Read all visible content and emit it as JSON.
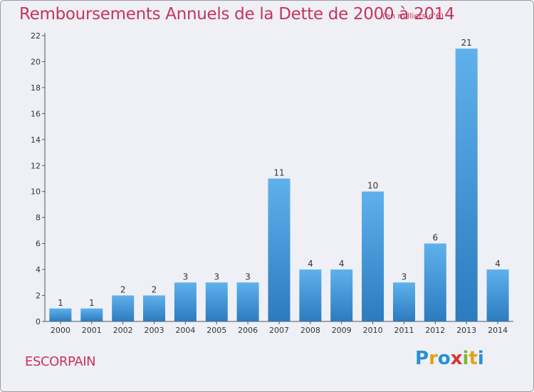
{
  "header": {
    "title": "Remboursements Annuels de la Dette de 2000 à 2014",
    "subtitle": "(en milliers d'€)"
  },
  "footer": {
    "commune": "ESCORPAIN",
    "logo_text": "Proxiti"
  },
  "colors": {
    "title": "#c8335a",
    "bar_top": "#5fb1ec",
    "bar_bottom": "#2b7bbf",
    "logo_letters": [
      "#2a8fd6",
      "#e0a21c",
      "#2a8fd6",
      "#d9352f",
      "#7cb82f",
      "#e0a21c",
      "#2a8fd6"
    ]
  },
  "chart_data": {
    "type": "bar",
    "title": "Remboursements Annuels de la Dette de 2000 à 2014",
    "subtitle": "(en milliers d'€)",
    "categories": [
      "2000",
      "2001",
      "2002",
      "2003",
      "2004",
      "2005",
      "2006",
      "2007",
      "2008",
      "2009",
      "2010",
      "2011",
      "2012",
      "2013",
      "2014"
    ],
    "values": [
      1,
      1,
      2,
      2,
      3,
      3,
      3,
      11,
      4,
      4,
      10,
      3,
      6,
      21,
      4
    ],
    "ylim": [
      0,
      22
    ],
    "yticks": [
      0,
      2,
      4,
      6,
      8,
      10,
      12,
      14,
      16,
      18,
      20,
      22
    ],
    "grid": false,
    "legend": "none",
    "data_labels": true
  }
}
